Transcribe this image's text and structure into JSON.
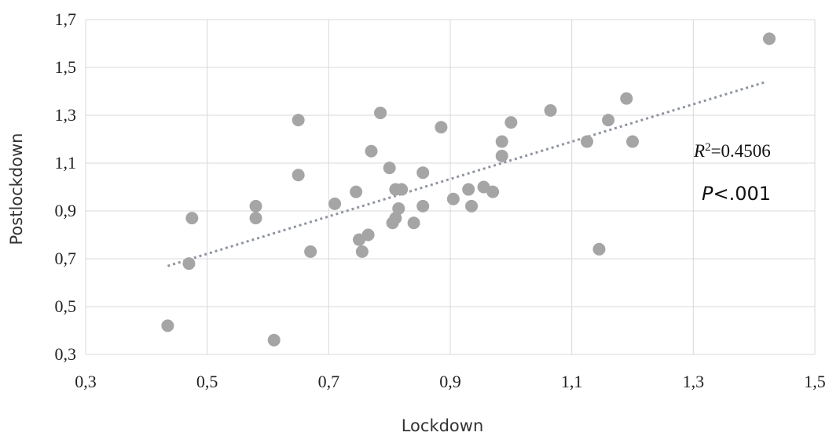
{
  "chart_data": {
    "type": "scatter",
    "xlabel": "Lockdown",
    "ylabel": "Postlockdown",
    "xlim": [
      0.3,
      1.5
    ],
    "ylim": [
      0.3,
      1.7
    ],
    "xticks": [
      "0,3",
      "0,5",
      "0,7",
      "0,9",
      "1,1",
      "1,3",
      "1,5"
    ],
    "yticks": [
      "0,3",
      "0,5",
      "0,7",
      "0,9",
      "1,1",
      "1,3",
      "1,5",
      "1,7"
    ],
    "grid": true,
    "point_color": "#a5a5a5",
    "trendline": {
      "style": "dotted",
      "color": "#8f95a0",
      "x": [
        0.435,
        1.42
      ],
      "y": [
        0.67,
        1.44
      ]
    },
    "annotations": {
      "r2_symbol": "R",
      "r2_exp": "2",
      "r2_value": "=0.4506",
      "p_symbol": "P",
      "p_value": "<.001"
    },
    "points": [
      [
        0.435,
        0.42
      ],
      [
        0.47,
        0.68
      ],
      [
        0.475,
        0.87
      ],
      [
        0.58,
        0.92
      ],
      [
        0.58,
        0.87
      ],
      [
        0.61,
        0.36
      ],
      [
        0.65,
        1.28
      ],
      [
        0.65,
        1.05
      ],
      [
        0.67,
        0.73
      ],
      [
        0.71,
        0.93
      ],
      [
        0.745,
        0.98
      ],
      [
        0.75,
        0.78
      ],
      [
        0.755,
        0.73
      ],
      [
        0.765,
        0.8
      ],
      [
        0.77,
        1.15
      ],
      [
        0.785,
        1.31
      ],
      [
        0.8,
        1.08
      ],
      [
        0.805,
        0.85
      ],
      [
        0.81,
        0.87
      ],
      [
        0.81,
        0.99
      ],
      [
        0.815,
        0.91
      ],
      [
        0.82,
        0.99
      ],
      [
        0.84,
        0.85
      ],
      [
        0.855,
        1.06
      ],
      [
        0.855,
        0.92
      ],
      [
        0.885,
        1.25
      ],
      [
        0.905,
        0.95
      ],
      [
        0.93,
        0.99
      ],
      [
        0.935,
        0.92
      ],
      [
        0.955,
        1.0
      ],
      [
        0.97,
        0.98
      ],
      [
        0.985,
        1.19
      ],
      [
        0.985,
        1.13
      ],
      [
        1.0,
        1.27
      ],
      [
        1.065,
        1.32
      ],
      [
        1.125,
        1.19
      ],
      [
        1.145,
        0.74
      ],
      [
        1.16,
        1.28
      ],
      [
        1.19,
        1.37
      ],
      [
        1.2,
        1.19
      ],
      [
        1.425,
        1.62
      ]
    ]
  }
}
